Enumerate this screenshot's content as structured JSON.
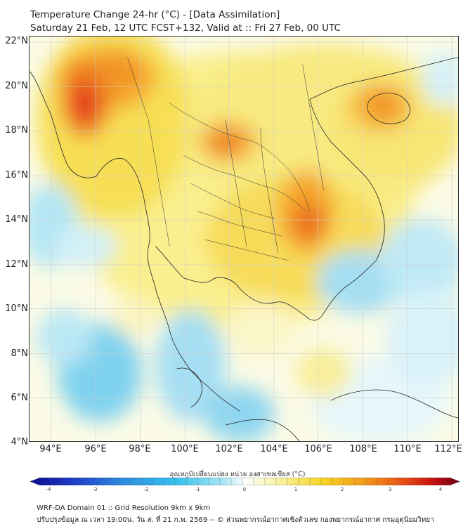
{
  "title": {
    "line1": "Temperature Change 24-hr (°C) - [Data Assimilation]",
    "line2": "Saturday 21 Feb, 12 UTC FCST+132, Valid at :: Fri 27 Feb, 00 UTC"
  },
  "axes": {
    "latitude_ticks": [
      "22°N",
      "20°N",
      "18°N",
      "16°N",
      "14°N",
      "12°N",
      "10°N",
      "8°N",
      "6°N",
      "4°N"
    ],
    "longitude_ticks": [
      "94°E",
      "96°E",
      "98°E",
      "100°E",
      "102°E",
      "104°E",
      "106°E",
      "108°E",
      "110°E",
      "112°E"
    ]
  },
  "colorbar": {
    "title": "อุณหภูมิเปลี่ยนแปลง หน่วย องศาเซลเซียส (°C)",
    "ticks": [
      "-4",
      "-3",
      "-2",
      "-1",
      "0",
      "1",
      "2",
      "3",
      "4"
    ],
    "colors": [
      "#0a0a8c",
      "#1e3cc8",
      "#2f8ee0",
      "#35c2ee",
      "#a9e6f5",
      "#ffffff",
      "#f8f3a0",
      "#f7d524",
      "#f39a1b",
      "#e84f14",
      "#c60e10",
      "#6a0010"
    ]
  },
  "footer": {
    "line1": "WRF-DA Domain 01 :: Grid Resolution 9km x 9km",
    "line2": "ปรับปรุงข้อมูล ณ เวลา 19:00น. วัน ส. ที่ 21 ก.พ. 2569 -- © ส่วนพยากรณ์อากาศเชิงตัวเลข กองพยากรณ์อากาศ กรมอุตุนิยมวิทยา"
  }
}
